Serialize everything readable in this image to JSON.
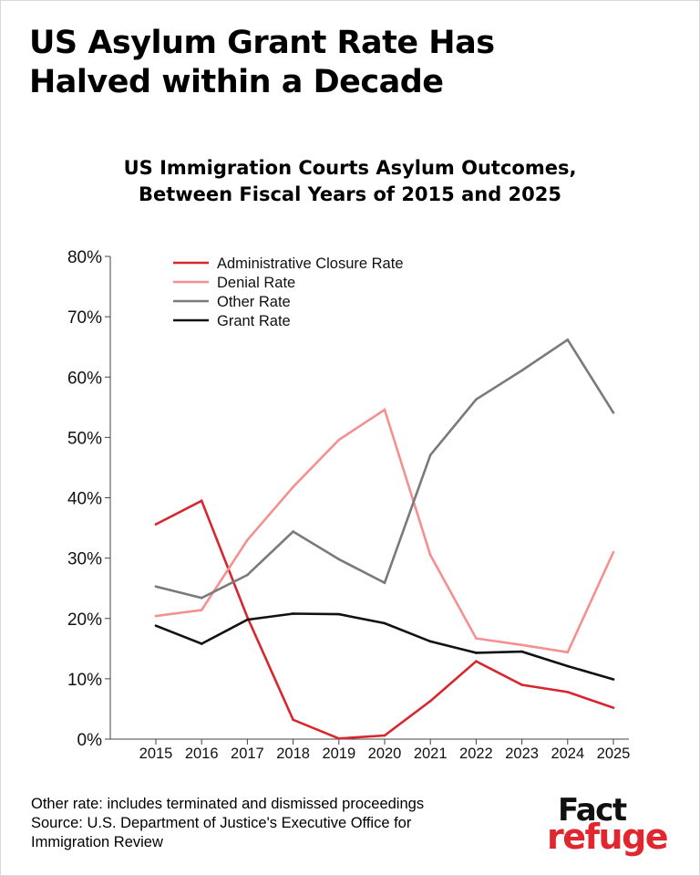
{
  "headline": {
    "line1": "US Asylum Grant Rate Has",
    "line2": "Halved within a Decade"
  },
  "chart_data": {
    "type": "line",
    "title_line1": "US Immigration Courts Asylum Outcomes,",
    "title_line2": "Between Fiscal Years of 2015 and 2025",
    "x": [
      2015,
      2016,
      2017,
      2018,
      2019,
      2020,
      2021,
      2022,
      2023,
      2024,
      2025
    ],
    "x_tick_labels": [
      "2015",
      "2016",
      "2017",
      "2018",
      "2019",
      "2020",
      "2021",
      "2022",
      "2023",
      "2024",
      "2025"
    ],
    "ylim": [
      0,
      80
    ],
    "y_ticks": [
      0,
      10,
      20,
      30,
      40,
      50,
      60,
      70,
      80
    ],
    "y_tick_labels": [
      "0%",
      "10%",
      "20%",
      "30%",
      "40%",
      "50%",
      "60%",
      "70%",
      "80%"
    ],
    "grid": false,
    "legend_position": "top-left",
    "series": [
      {
        "name": "Administrative Closure Rate",
        "color": "#d7262d",
        "values": [
          35.6,
          39.5,
          20.2,
          3.2,
          0.1,
          0.6,
          6.3,
          12.9,
          9.0,
          7.8,
          5.2
        ]
      },
      {
        "name": "Denial Rate",
        "color": "#f59090",
        "values": [
          20.4,
          21.4,
          33.0,
          41.8,
          49.6,
          54.6,
          30.5,
          16.7,
          15.6,
          14.4,
          31.0
        ]
      },
      {
        "name": "Other Rate",
        "color": "#7a7a7a",
        "values": [
          25.3,
          23.4,
          27.2,
          34.4,
          29.8,
          25.9,
          47.1,
          56.3,
          61.1,
          66.2,
          54.1
        ]
      },
      {
        "name": "Grant Rate",
        "color": "#111111",
        "values": [
          18.8,
          15.8,
          19.8,
          20.8,
          20.7,
          19.2,
          16.2,
          14.3,
          14.5,
          12.1,
          9.9
        ]
      }
    ]
  },
  "footnote": {
    "line1": "Other rate: includes terminated and dismissed proceedings",
    "line2": "Source: U.S. Department of Justice's Executive Office for",
    "line3": "Immigration Review"
  },
  "logo": {
    "top": "Fact",
    "bottom": "refuge"
  }
}
